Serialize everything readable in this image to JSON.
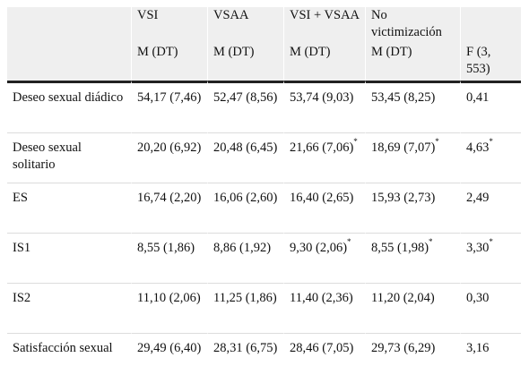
{
  "header": {
    "row1": [
      "",
      "VSI",
      "VSAA",
      "VSI + VSAA",
      "No victimización",
      ""
    ],
    "row2": [
      "",
      "M (DT)",
      "M (DT)",
      "M (DT)",
      "M (DT)",
      "F (3, 553)"
    ]
  },
  "rows": [
    {
      "label": "Deseo sexual diádico",
      "vsi": "54,17 (7,46)",
      "vsaa": "52,47 (8,56)",
      "vsi_vsaa": "53,74 (9,03)",
      "vsi_vsaa_sup": "",
      "no_vict": "53,45 (8,25)",
      "no_vict_sup": "",
      "f": "0,41",
      "f_sup": ""
    },
    {
      "label": "Deseo sexual solitario",
      "vsi": "20,20 (6,92)",
      "vsaa": "20,48 (6,45)",
      "vsi_vsaa": "21,66 (7,06)",
      "vsi_vsaa_sup": "*",
      "no_vict": "18,69 (7,07)",
      "no_vict_sup": "*",
      "f": "4,63",
      "f_sup": "*"
    },
    {
      "label": "ES",
      "vsi": "16,74 (2,20)",
      "vsaa": "16,06 (2,60)",
      "vsi_vsaa": "16,40 (2,65)",
      "vsi_vsaa_sup": "",
      "no_vict": "15,93 (2,73)",
      "no_vict_sup": "",
      "f": "2,49",
      "f_sup": ""
    },
    {
      "label": "IS1",
      "vsi": "8,55 (1,86)",
      "vsaa": "8,86 (1,92)",
      "vsi_vsaa": "9,30 (2,06)",
      "vsi_vsaa_sup": "*",
      "no_vict": "8,55 (1,98)",
      "no_vict_sup": "*",
      "f": "3,30",
      "f_sup": "*"
    },
    {
      "label": "IS2",
      "vsi": "11,10 (2,06)",
      "vsaa": "11,25 (1,86)",
      "vsi_vsaa": "11,40 (2,36)",
      "vsi_vsaa_sup": "",
      "no_vict": "11,20 (2,04)",
      "no_vict_sup": "",
      "f": "0,30",
      "f_sup": ""
    },
    {
      "label": "Satisfacción sexual",
      "vsi": "29,49 (6,40)",
      "vsaa": "28,31 (6,75)",
      "vsi_vsaa": "28,46 (7,05)",
      "vsi_vsaa_sup": "",
      "no_vict": "29,73 (6,29)",
      "no_vict_sup": "",
      "f": "3,16",
      "f_sup": ""
    }
  ]
}
